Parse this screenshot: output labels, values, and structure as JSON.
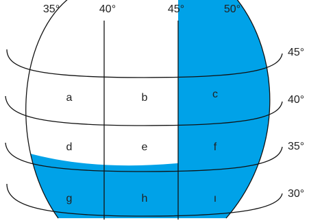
{
  "longitude_labels": [
    "35°",
    "40°",
    "45°",
    "50°"
  ],
  "latitude_labels": [
    "45°",
    "40°",
    "35°",
    "30°"
  ],
  "cells": [
    "a",
    "b",
    "c",
    "d",
    "e",
    "f",
    "g",
    "h",
    "ı"
  ],
  "colors": {
    "highlight": "#00a2e8",
    "line": "#111111",
    "background": "#ffffff"
  }
}
